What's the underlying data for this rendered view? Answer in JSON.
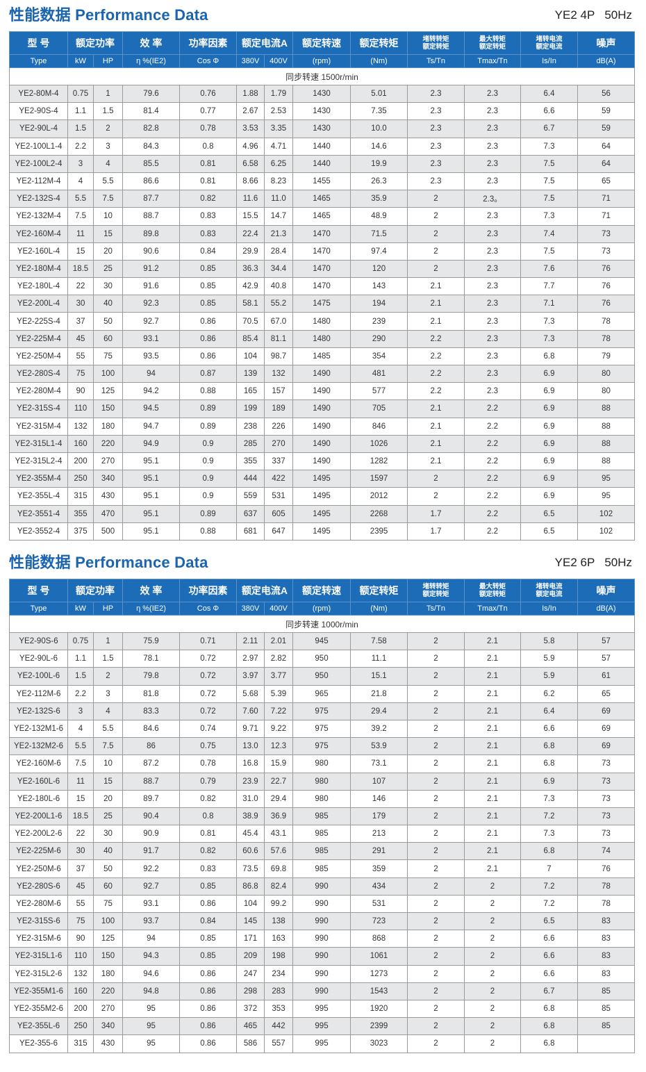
{
  "header_labels": {
    "type_cn": "型 号",
    "power_cn": "额定功率",
    "eff_cn": "效 率",
    "pf_cn": "功率因素",
    "current_cn": "额定电流A",
    "speed_cn": "额定转速",
    "torque_cn": "额定转矩",
    "ts_cn_1": "堵转转矩",
    "ts_cn_2": "额定转矩",
    "tmax_cn_1": "最大转矩",
    "tmax_cn_2": "额定转矩",
    "is_cn_1": "堵转电流",
    "is_cn_2": "额定电流",
    "noise_cn": "噪声",
    "type": "Type",
    "kw": "kW",
    "hp": "HP",
    "eff": "η %(IE2)",
    "pf": "Cos Φ",
    "v380": "380V",
    "v400": "400V",
    "rpm": "(rpm)",
    "nm": "(Nm)",
    "ts": "Ts/Tn",
    "tmax": "Tmax/Tn",
    "is": "Is/In",
    "db": "dB(A)"
  },
  "colors": {
    "accent": "#1a64b0",
    "header_bg": "#1d6cb8",
    "row_alt": "#e6e7e8"
  },
  "tables": [
    {
      "title": "性能数据 Performance Data",
      "series": "YE2 4P",
      "freq": "50Hz",
      "sync_speed": "同步转速  1500r/min",
      "rows": [
        [
          "YE2-80M-4",
          "0.75",
          "1",
          "79.6",
          "0.76",
          "1.88",
          "1.79",
          "1430",
          "5.01",
          "2.3",
          "2.3",
          "6.4",
          "56"
        ],
        [
          "YE2-90S-4",
          "1.1",
          "1.5",
          "81.4",
          "0.77",
          "2.67",
          "2.53",
          "1430",
          "7.35",
          "2.3",
          "2.3",
          "6.6",
          "59"
        ],
        [
          "YE2-90L-4",
          "1.5",
          "2",
          "82.8",
          "0.78",
          "3.53",
          "3.35",
          "1430",
          "10.0",
          "2.3",
          "2.3",
          "6.7",
          "59"
        ],
        [
          "YE2-100L1-4",
          "2.2",
          "3",
          "84.3",
          "0.8",
          "4.96",
          "4.71",
          "1440",
          "14.6",
          "2.3",
          "2.3",
          "7.3",
          "64"
        ],
        [
          "YE2-100L2-4",
          "3",
          "4",
          "85.5",
          "0.81",
          "6.58",
          "6.25",
          "1440",
          "19.9",
          "2.3",
          "2.3",
          "7.5",
          "64"
        ],
        [
          "YE2-112M-4",
          "4",
          "5.5",
          "86.6",
          "0.81",
          "8.66",
          "8.23",
          "1455",
          "26.3",
          "2.3",
          "2.3",
          "7.5",
          "65"
        ],
        [
          "YE2-132S-4",
          "5.5",
          "7.5",
          "87.7",
          "0.82",
          "11.6",
          "11.0",
          "1465",
          "35.9",
          "2",
          "2.3。",
          "7.5",
          "71"
        ],
        [
          "YE2-132M-4",
          "7.5",
          "10",
          "88.7",
          "0.83",
          "15.5",
          "14.7",
          "1465",
          "48.9",
          "2",
          "2.3",
          "7.3",
          "71"
        ],
        [
          "YE2-160M-4",
          "11",
          "15",
          "89.8",
          "0.83",
          "22.4",
          "21.3",
          "1470",
          "71.5",
          "2",
          "2.3",
          "7.4",
          "73"
        ],
        [
          "YE2-160L-4",
          "15",
          "20",
          "90.6",
          "0.84",
          "29.9",
          "28.4",
          "1470",
          "97.4",
          "2",
          "2.3",
          "7.5",
          "73"
        ],
        [
          "YE2-180M-4",
          "18.5",
          "25",
          "91.2",
          "0.85",
          "36.3",
          "34.4",
          "1470",
          "120",
          "2",
          "2.3",
          "7.6",
          "76"
        ],
        [
          "YE2-180L-4",
          "22",
          "30",
          "91.6",
          "0.85",
          "42.9",
          "40.8",
          "1470",
          "143",
          "2.1",
          "2.3",
          "7.7",
          "76"
        ],
        [
          "YE2-200L-4",
          "30",
          "40",
          "92.3",
          "0.85",
          "58.1",
          "55.2",
          "1475",
          "194",
          "2.1",
          "2.3",
          "7.1",
          "76"
        ],
        [
          "YE2-225S-4",
          "37",
          "50",
          "92.7",
          "0.86",
          "70.5",
          "67.0",
          "1480",
          "239",
          "2.1",
          "2.3",
          "7.3",
          "78"
        ],
        [
          "YE2-225M-4",
          "45",
          "60",
          "93.1",
          "0.86",
          "85.4",
          "81.1",
          "1480",
          "290",
          "2.2",
          "2.3",
          "7.3",
          "78"
        ],
        [
          "YE2-250M-4",
          "55",
          "75",
          "93.5",
          "0.86",
          "104",
          "98.7",
          "1485",
          "354",
          "2.2",
          "2.3",
          "6.8",
          "79"
        ],
        [
          "YE2-280S-4",
          "75",
          "100",
          "94",
          "0.87",
          "139",
          "132",
          "1490",
          "481",
          "2.2",
          "2.3",
          "6.9",
          "80"
        ],
        [
          "YE2-280M-4",
          "90",
          "125",
          "94.2",
          "0.88",
          "165",
          "157",
          "1490",
          "577",
          "2.2",
          "2.3",
          "6.9",
          "80"
        ],
        [
          "YE2-315S-4",
          "110",
          "150",
          "94.5",
          "0.89",
          "199",
          "189",
          "1490",
          "705",
          "2.1",
          "2.2",
          "6.9",
          "88"
        ],
        [
          "YE2-315M-4",
          "132",
          "180",
          "94.7",
          "0.89",
          "238",
          "226",
          "1490",
          "846",
          "2.1",
          "2.2",
          "6.9",
          "88"
        ],
        [
          "YE2-315L1-4",
          "160",
          "220",
          "94.9",
          "0.9",
          "285",
          "270",
          "1490",
          "1026",
          "2.1",
          "2.2",
          "6.9",
          "88"
        ],
        [
          "YE2-315L2-4",
          "200",
          "270",
          "95.1",
          "0.9",
          "355",
          "337",
          "1490",
          "1282",
          "2.1",
          "2.2",
          "6.9",
          "88"
        ],
        [
          "YE2-355M-4",
          "250",
          "340",
          "95.1",
          "0.9",
          "444",
          "422",
          "1495",
          "1597",
          "2",
          "2.2",
          "6.9",
          "95"
        ],
        [
          "YE2-355L-4",
          "315",
          "430",
          "95.1",
          "0.9",
          "559",
          "531",
          "1495",
          "2012",
          "2",
          "2.2",
          "6.9",
          "95"
        ],
        [
          "YE2-3551-4",
          "355",
          "470",
          "95.1",
          "0.89",
          "637",
          "605",
          "1495",
          "2268",
          "1.7",
          "2.2",
          "6.5",
          "102"
        ],
        [
          "YE2-3552-4",
          "375",
          "500",
          "95.1",
          "0.88",
          "681",
          "647",
          "1495",
          "2395",
          "1.7",
          "2.2",
          "6.5",
          "102"
        ]
      ]
    },
    {
      "title": "性能数据 Performance Data",
      "series": "YE2 6P",
      "freq": "50Hz",
      "sync_speed": "同步转速  1000r/min",
      "rows": [
        [
          "YE2-90S-6",
          "0.75",
          "1",
          "75.9",
          "0.71",
          "2.11",
          "2.01",
          "945",
          "7.58",
          "2",
          "2.1",
          "5.8",
          "57"
        ],
        [
          "YE2-90L-6",
          "1.1",
          "1.5",
          "78.1",
          "0.72",
          "2.97",
          "2.82",
          "950",
          "11.1",
          "2",
          "2.1",
          "5.9",
          "57"
        ],
        [
          "YE2-100L-6",
          "1.5",
          "2",
          "79.8",
          "0.72",
          "3.97",
          "3.77",
          "950",
          "15.1",
          "2",
          "2.1",
          "5.9",
          "61"
        ],
        [
          "YE2-112M-6",
          "2.2",
          "3",
          "81.8",
          "0.72",
          "5.68",
          "5.39",
          "965",
          "21.8",
          "2",
          "2.1",
          "6.2",
          "65"
        ],
        [
          "YE2-132S-6",
          "3",
          "4",
          "83.3",
          "0.72",
          "7.60",
          "7.22",
          "975",
          "29.4",
          "2",
          "2.1",
          "6.4",
          "69"
        ],
        [
          "YE2-132M1-6",
          "4",
          "5.5",
          "84.6",
          "0.74",
          "9.71",
          "9.22",
          "975",
          "39.2",
          "2",
          "2.1",
          "6.6",
          "69"
        ],
        [
          "YE2-132M2-6",
          "5.5",
          "7.5",
          "86",
          "0.75",
          "13.0",
          "12.3",
          "975",
          "53.9",
          "2",
          "2.1",
          "6.8",
          "69"
        ],
        [
          "YE2-160M-6",
          "7.5",
          "10",
          "87.2",
          "0.78",
          "16.8",
          "15.9",
          "980",
          "73.1",
          "2",
          "2.1",
          "6.8",
          "73"
        ],
        [
          "YE2-160L-6",
          "11",
          "15",
          "88.7",
          "0.79",
          "23.9",
          "22.7",
          "980",
          "107",
          "2",
          "2.1",
          "6.9",
          "73"
        ],
        [
          "YE2-180L-6",
          "15",
          "20",
          "89.7",
          "0.82",
          "31.0",
          "29.4",
          "980",
          "146",
          "2",
          "2.1",
          "7.3",
          "73"
        ],
        [
          "YE2-200L1-6",
          "18.5",
          "25",
          "90.4",
          "0.8",
          "38.9",
          "36.9",
          "985",
          "179",
          "2",
          "2.1",
          "7.2",
          "73"
        ],
        [
          "YE2-200L2-6",
          "22",
          "30",
          "90.9",
          "0.81",
          "45.4",
          "43.1",
          "985",
          "213",
          "2",
          "2.1",
          "7.3",
          "73"
        ],
        [
          "YE2-225M-6",
          "30",
          "40",
          "91.7",
          "0.82",
          "60.6",
          "57.6",
          "985",
          "291",
          "2",
          "2.1",
          "6.8",
          "74"
        ],
        [
          "YE2-250M-6",
          "37",
          "50",
          "92.2",
          "0.83",
          "73.5",
          "69.8",
          "985",
          "359",
          "2",
          "2.1",
          "7",
          "76"
        ],
        [
          "YE2-280S-6",
          "45",
          "60",
          "92.7",
          "0.85",
          "86.8",
          "82.4",
          "990",
          "434",
          "2",
          "2",
          "7.2",
          "78"
        ],
        [
          "YE2-280M-6",
          "55",
          "75",
          "93.1",
          "0.86",
          "104",
          "99.2",
          "990",
          "531",
          "2",
          "2",
          "7.2",
          "78"
        ],
        [
          "YE2-315S-6",
          "75",
          "100",
          "93.7",
          "0.84",
          "145",
          "138",
          "990",
          "723",
          "2",
          "2",
          "6.5",
          "83"
        ],
        [
          "YE2-315M-6",
          "90",
          "125",
          "94",
          "0.85",
          "171",
          "163",
          "990",
          "868",
          "2",
          "2",
          "6.6",
          "83"
        ],
        [
          "YE2-315L1-6",
          "110",
          "150",
          "94.3",
          "0.85",
          "209",
          "198",
          "990",
          "1061",
          "2",
          "2",
          "6.6",
          "83"
        ],
        [
          "YE2-315L2-6",
          "132",
          "180",
          "94.6",
          "0.86",
          "247",
          "234",
          "990",
          "1273",
          "2",
          "2",
          "6.6",
          "83"
        ],
        [
          "YE2-355M1-6",
          "160",
          "220",
          "94.8",
          "0.86",
          "298",
          "283",
          "990",
          "1543",
          "2",
          "2",
          "6.7",
          "85"
        ],
        [
          "YE2-355M2-6",
          "200",
          "270",
          "95",
          "0.86",
          "372",
          "353",
          "995",
          "1920",
          "2",
          "2",
          "6.8",
          "85"
        ],
        [
          "YE2-355L-6",
          "250",
          "340",
          "95",
          "0.86",
          "465",
          "442",
          "995",
          "2399",
          "2",
          "2",
          "6.8",
          "85"
        ],
        [
          "YE2-355-6",
          "315",
          "430",
          "95",
          "0.86",
          "586",
          "557",
          "995",
          "3023",
          "2",
          "2",
          "6.8",
          ""
        ]
      ]
    }
  ]
}
